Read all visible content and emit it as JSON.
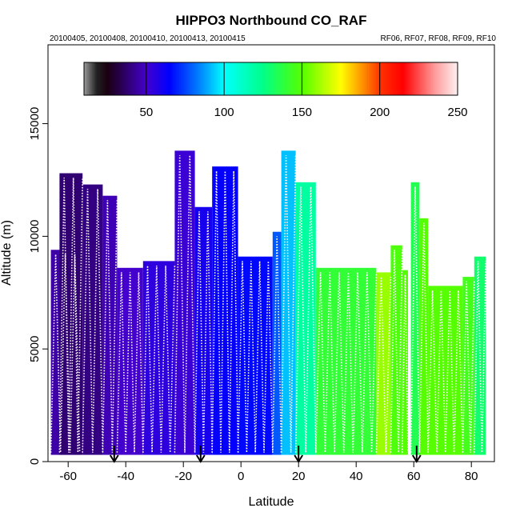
{
  "chart_data": {
    "type": "heatmap",
    "title": "HIPPO3 Northbound CO_RAF",
    "subtitle_left": "20100405, 20100408, 20100410, 20100413, 20100415",
    "subtitle_right": "RF06, RF07, RF08, RF09, RF10",
    "xlabel": "Latitude",
    "ylabel": "Altitude (m)",
    "xlim": [
      -67,
      88
    ],
    "ylim": [
      0,
      18500
    ],
    "x_ticks": [
      "-60",
      "-40",
      "-20",
      "0",
      "20",
      "40",
      "60",
      "80"
    ],
    "y_ticks": [
      "0",
      "5000",
      "10000",
      "15000"
    ],
    "colorbar": {
      "range": [
        10,
        250
      ],
      "ticks": [
        "50",
        "100",
        "150",
        "200",
        "250"
      ],
      "stops": [
        {
          "v": 10,
          "c": "#9a9a9a"
        },
        {
          "v": 18,
          "c": "#222222"
        },
        {
          "v": 25,
          "c": "#1a0010"
        },
        {
          "v": 50,
          "c": "#4400cc"
        },
        {
          "v": 65,
          "c": "#0000ff"
        },
        {
          "v": 85,
          "c": "#0088ff"
        },
        {
          "v": 100,
          "c": "#00ffff"
        },
        {
          "v": 125,
          "c": "#00ff88"
        },
        {
          "v": 150,
          "c": "#55ff00"
        },
        {
          "v": 175,
          "c": "#ffff00"
        },
        {
          "v": 190,
          "c": "#ff8800"
        },
        {
          "v": 200,
          "c": "#ff3300"
        },
        {
          "v": 215,
          "c": "#ff0000"
        },
        {
          "v": 235,
          "c": "#ff9999"
        },
        {
          "v": 250,
          "c": "#fff0f0"
        }
      ]
    },
    "curtain_segments": [
      {
        "lat": [
          -66,
          -56
        ],
        "top": 9400,
        "co": 45
      },
      {
        "lat": [
          -63,
          -55
        ],
        "top": 12800,
        "co": 38
      },
      {
        "lat": [
          -55,
          -48
        ],
        "top": 12300,
        "co": 40
      },
      {
        "lat": [
          -48,
          -43
        ],
        "top": 11800,
        "co": 47
      },
      {
        "lat": [
          -43,
          -34
        ],
        "top": 8600,
        "co": 50
      },
      {
        "lat": [
          -34,
          -23
        ],
        "top": 8900,
        "co": 55
      },
      {
        "lat": [
          -23,
          -16
        ],
        "top": 13800,
        "co": 52
      },
      {
        "lat": [
          -16,
          -10
        ],
        "top": 11300,
        "co": 60
      },
      {
        "lat": [
          -10,
          -1
        ],
        "top": 13100,
        "co": 64
      },
      {
        "lat": [
          -1,
          11
        ],
        "top": 9100,
        "co": 66
      },
      {
        "lat": [
          11,
          14
        ],
        "top": 10200,
        "co": 78
      },
      {
        "lat": [
          14,
          19
        ],
        "top": 13800,
        "co": 92
      },
      {
        "lat": [
          19,
          26
        ],
        "top": 12400,
        "co": 120
      },
      {
        "lat": [
          26,
          47
        ],
        "top": 8600,
        "co": 140
      },
      {
        "lat": [
          47,
          52
        ],
        "top": 8400,
        "co": 160
      },
      {
        "lat": [
          52,
          56
        ],
        "top": 9600,
        "co": 148
      },
      {
        "lat": [
          56,
          58
        ],
        "top": 8500,
        "co": 150
      },
      {
        "lat": [
          59,
          62
        ],
        "top": 12400,
        "co": 135
      },
      {
        "lat": [
          62,
          65
        ],
        "top": 10800,
        "co": 150
      },
      {
        "lat": [
          65,
          77
        ],
        "top": 7800,
        "co": 150
      },
      {
        "lat": [
          77,
          81
        ],
        "top": 8200,
        "co": 145
      },
      {
        "lat": [
          81,
          85
        ],
        "top": 9100,
        "co": 130
      }
    ],
    "profile_markers": [
      {
        "lat": -44
      },
      {
        "lat": -14
      },
      {
        "lat": 20
      },
      {
        "lat": 61
      }
    ]
  }
}
